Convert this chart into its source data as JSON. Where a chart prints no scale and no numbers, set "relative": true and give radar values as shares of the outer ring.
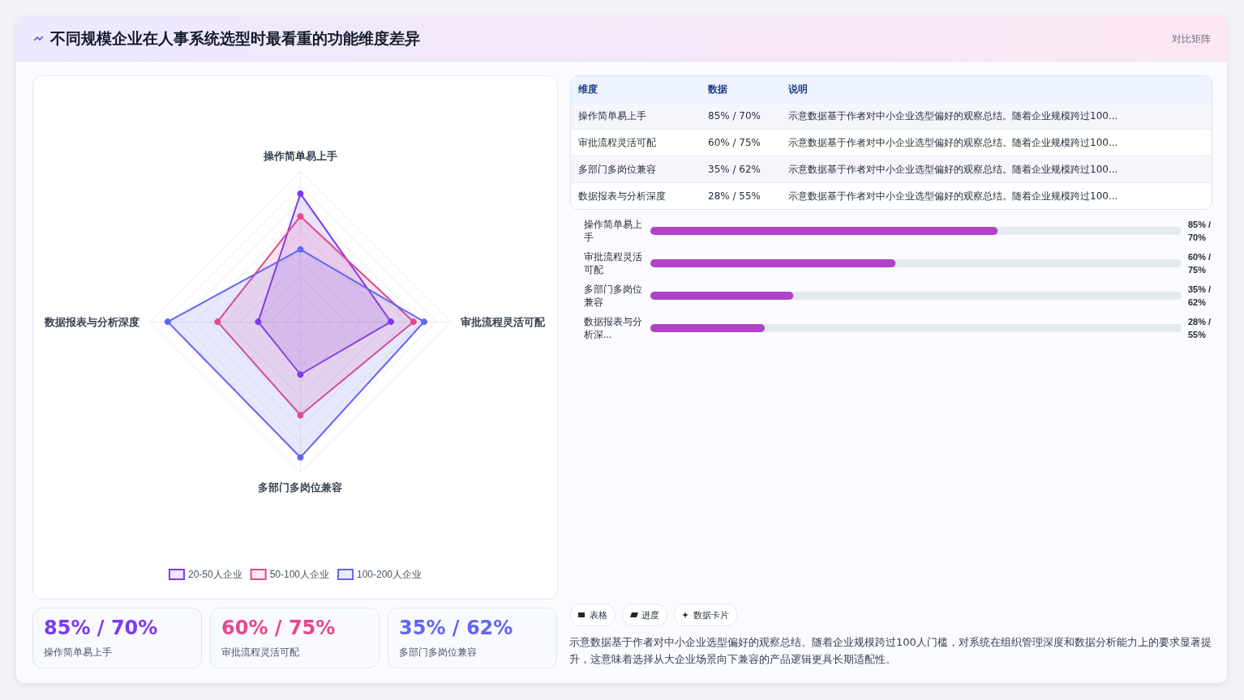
{
  "chart_data": [
    {
      "type": "other",
      "title": "不同规模企业在人事系统选型时最看重的功能维度差异",
      "subtitle": "对比矩阵"
    },
    {
      "type": "radar",
      "relative": true,
      "categories": [
        "操作简单易上手",
        "审批流程灵活可配",
        "多部门多岗位兼容",
        "数据报表与分析深度"
      ],
      "legend": "bottom",
      "marker": "circle",
      "series": [
        {
          "name": "20-50人企业",
          "color": "#7c3aed",
          "values": [
            0.85,
            0.6,
            0.35,
            0.28
          ]
        },
        {
          "name": "50-100人企业",
          "color": "#e4498f",
          "values": [
            0.7,
            0.75,
            0.62,
            0.55
          ]
        },
        {
          "name": "100-200人企业",
          "color": "#6366f1",
          "values": [
            0.48,
            0.82,
            0.9,
            0.88
          ]
        }
      ]
    },
    {
      "type": "bar",
      "orientation": "horizontal",
      "xlim": [
        0,
        130
      ],
      "tick_labels": "y",
      "categories": [
        "操作简单易上手",
        "审批流程灵活可配",
        "多部门多岗位兼容",
        "数据报表与分析深..."
      ],
      "values": [
        85,
        60,
        35,
        28
      ],
      "color": "#b043c6",
      "value_labels": [
        "85% / 70%",
        "60% / 75%",
        "35% / 62%",
        "28% / 55%"
      ]
    },
    {
      "type": "other",
      "annotations": [
        "维度",
        "数据",
        "说明",
        "操作简单易上手",
        "85% / 70%",
        "示意数据基于作者对中小企业选型偏好的观察总结。随着企业规模跨过100...",
        "审批流程灵活可配",
        "60% / 75%",
        "示意数据基于作者对中小企业选型偏好的观察总结。随着企业规模跨过100...",
        "多部门多岗位兼容",
        "35% / 62%",
        "示意数据基于作者对中小企业选型偏好的观察总结。随着企业规模跨过100...",
        "数据报表与分析深度",
        "28% / 55%",
        "示意数据基于作者对中小企业选型偏好的观察总结。随着企业规模跨过100..."
      ]
    },
    {
      "type": "other",
      "annotations": [
        "85% / 70%",
        "操作简单易上手",
        "60% / 75%",
        "审批流程灵活可配",
        "35% / 62%",
        "多部门多岗位兼容"
      ],
      "colors": [
        "#7c3aed",
        "#e4498f",
        "#6366f1"
      ]
    },
    {
      "type": "other",
      "annotations": [
        "表格",
        "进度",
        "数据卡片",
        "示意数据基于作者对中小企业选型偏好的观察总结。随着企业规模跨过100人门槛，对系统在组织管理深度和数据分析能力上的要求显著提升，这意味着选择从大企业场景向下兼容的产品逻辑更具长期适配性。"
      ]
    }
  ]
}
